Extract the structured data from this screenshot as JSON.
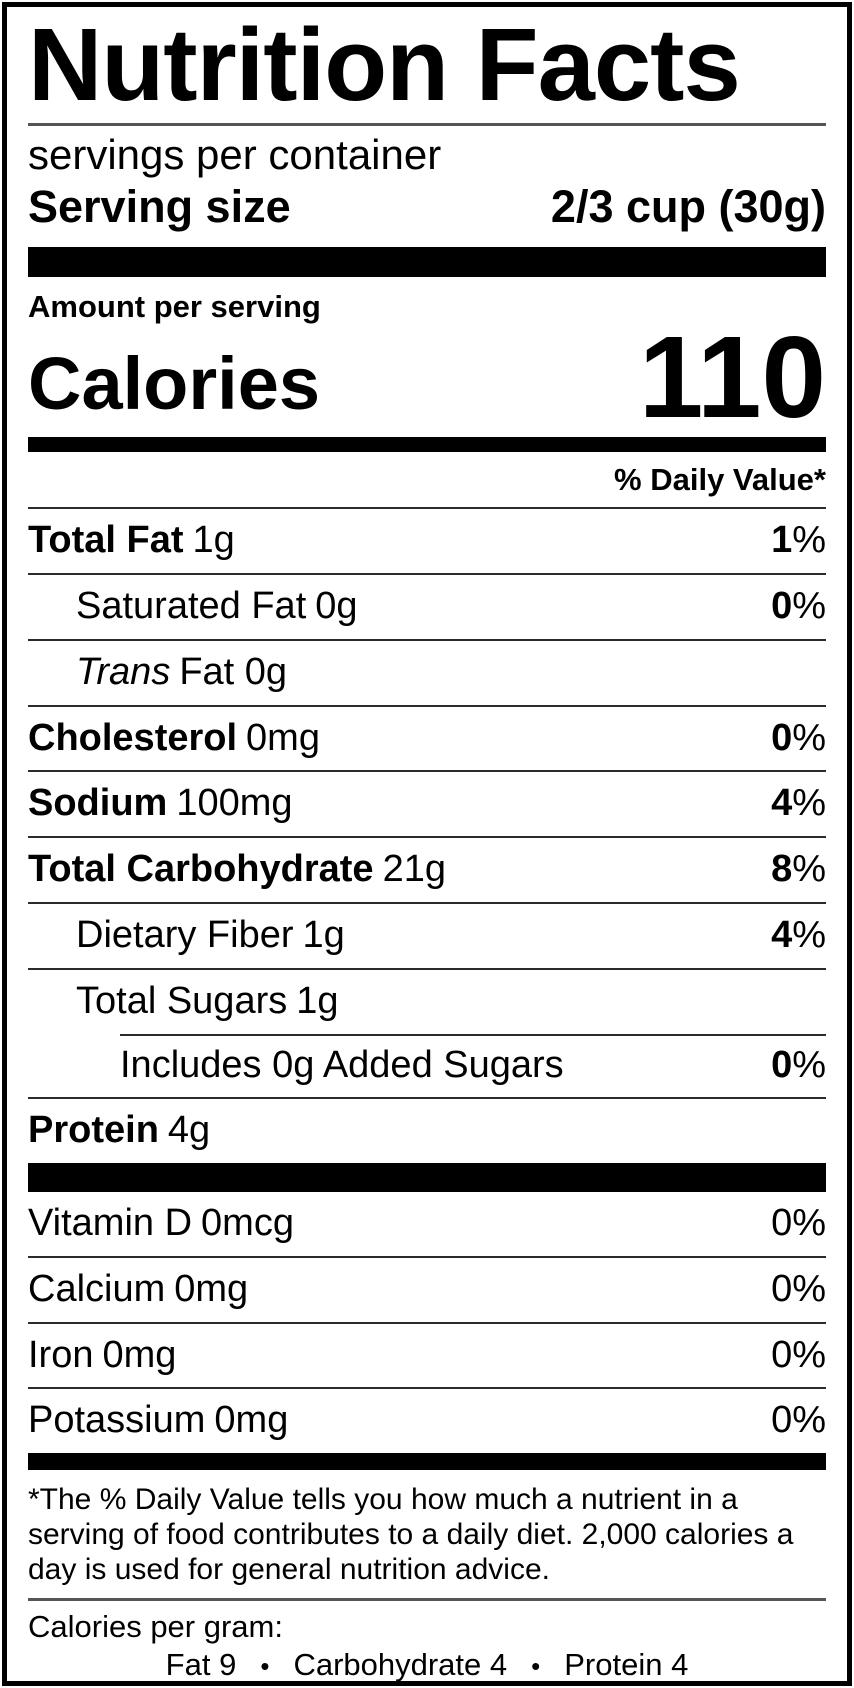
{
  "nutrition_label": {
    "title": "Nutrition Facts",
    "servings_per_container": "servings per container",
    "serving_size": {
      "label": "Serving size",
      "value": "2/3 cup (30g)"
    },
    "amount_per_serving": "Amount per serving",
    "calories": {
      "label": "Calories",
      "value": "110"
    },
    "daily_value_header": "% Daily Value*",
    "nutrient_rows": [
      {
        "name": "Total Fat",
        "amount": "1g",
        "dv_num": "1",
        "dv_sign": "%"
      },
      {
        "name": "Saturated Fat",
        "amount": "0g",
        "dv_num": "0",
        "dv_sign": "%"
      },
      {
        "name": "Trans",
        "amount": "Fat 0g",
        "dv_num": "",
        "dv_sign": ""
      },
      {
        "name": "Cholesterol",
        "amount": "0mg",
        "dv_num": "0",
        "dv_sign": "%"
      },
      {
        "name": "Sodium",
        "amount": "100mg",
        "dv_num": "4",
        "dv_sign": "%"
      },
      {
        "name": "Total Carbohydrate",
        "amount": "21g",
        "dv_num": "8",
        "dv_sign": "%"
      },
      {
        "name": "Dietary Fiber",
        "amount": "1g",
        "dv_num": "4",
        "dv_sign": "%"
      },
      {
        "name": "Total Sugars",
        "amount": "1g",
        "dv_num": "",
        "dv_sign": ""
      },
      {
        "name": "Includes 0g Added Sugars",
        "amount": "",
        "dv_num": "0",
        "dv_sign": "%"
      },
      {
        "name": "Protein",
        "amount": "4g",
        "dv_num": "",
        "dv_sign": ""
      }
    ],
    "vitamin_rows": [
      {
        "name": "Vitamin D",
        "amount": "0mcg",
        "dv_num": "0",
        "dv_sign": "%"
      },
      {
        "name": "Calcium",
        "amount": "0mg",
        "dv_num": "0",
        "dv_sign": "%"
      },
      {
        "name": "Iron",
        "amount": "0mg",
        "dv_num": "0",
        "dv_sign": "%"
      },
      {
        "name": "Potassium",
        "amount": "0mg",
        "dv_num": "0",
        "dv_sign": "%"
      }
    ],
    "footnote": "*The % Daily Value tells you how much a nutrient in a serving of food contributes to a daily diet. 2,000 calories a day is used for general nutrition advice.",
    "calories_per_gram": {
      "label": "Calories per gram:",
      "items": [
        "Fat 9",
        "Carbohydrate 4",
        "Protein 4"
      ],
      "bullet": "•"
    },
    "colors": {
      "text": "#000000",
      "background": "#ffffff",
      "bar": "#000000",
      "rule": "#2b2b2b"
    }
  }
}
